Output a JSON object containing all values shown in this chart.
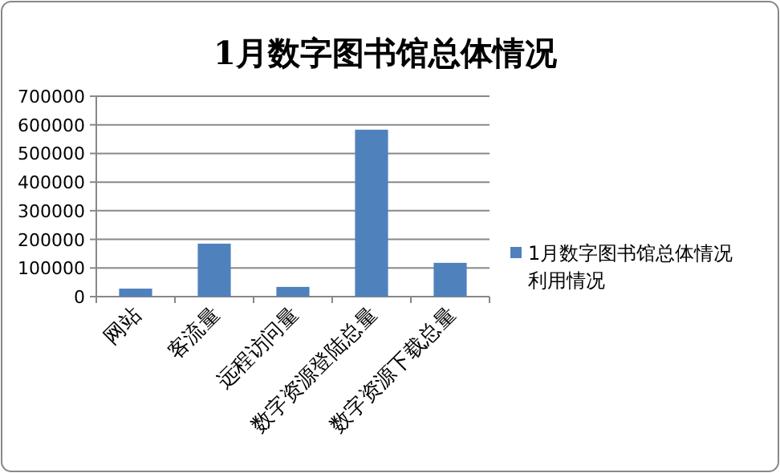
{
  "chart_data": {
    "type": "bar",
    "title": "1月数字图书馆总体情况",
    "categories": [
      "网站",
      "客流量",
      "远程访问量",
      "数字资源登陆总量",
      "数字资源下载总量"
    ],
    "series": [
      {
        "name": "1月数字图书馆总体情况利用情况",
        "color": "#4f81bd",
        "values": [
          28000,
          185000,
          34000,
          583000,
          118000
        ]
      }
    ],
    "ylim": [
      0,
      700000
    ],
    "yticks": [
      0,
      100000,
      200000,
      300000,
      400000,
      500000,
      600000,
      700000
    ],
    "grid": "y",
    "legend": "right"
  }
}
